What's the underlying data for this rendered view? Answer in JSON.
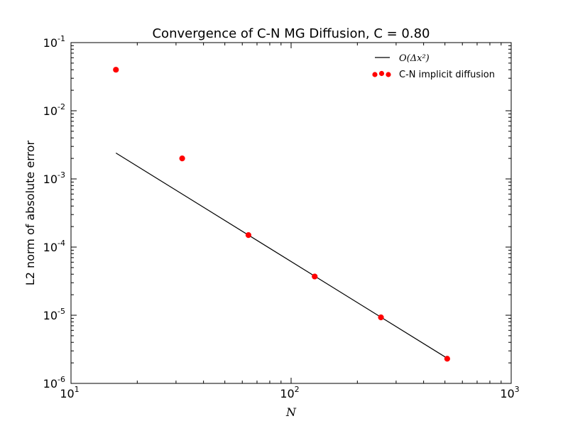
{
  "chart_data": {
    "type": "scatter",
    "title": "Convergence of C-N MG Diffusion, C = 0.80",
    "xlabel": "N",
    "ylabel": "L2 norm of absolute error",
    "xscale": "log",
    "yscale": "log",
    "xlim": [
      10,
      1000
    ],
    "ylim": [
      1e-06,
      0.1
    ],
    "grid": false,
    "legend_position": "top-right",
    "x_ticks": [
      {
        "base": "10",
        "exp": "1",
        "value": 10
      },
      {
        "base": "10",
        "exp": "2",
        "value": 100
      },
      {
        "base": "10",
        "exp": "3",
        "value": 1000
      }
    ],
    "y_ticks": [
      {
        "base": "10",
        "exp": "-6",
        "value": 1e-06
      },
      {
        "base": "10",
        "exp": "-5",
        "value": 1e-05
      },
      {
        "base": "10",
        "exp": "-4",
        "value": 0.0001
      },
      {
        "base": "10",
        "exp": "-3",
        "value": 0.001
      },
      {
        "base": "10",
        "exp": "-2",
        "value": 0.01
      },
      {
        "base": "10",
        "exp": "-1",
        "value": 0.1
      }
    ],
    "series": [
      {
        "name": "O(Δx²)",
        "kind": "line",
        "color": "#000000",
        "x": [
          16,
          512
        ],
        "y": [
          0.0024,
          2.34e-06
        ]
      },
      {
        "name": "C-N implicit diffusion",
        "kind": "scatter",
        "color": "#ff0000",
        "x": [
          16,
          32,
          64,
          128,
          256,
          512
        ],
        "y": [
          0.04,
          0.002,
          0.00015,
          3.7e-05,
          9.3e-06,
          2.3e-06
        ]
      }
    ]
  }
}
